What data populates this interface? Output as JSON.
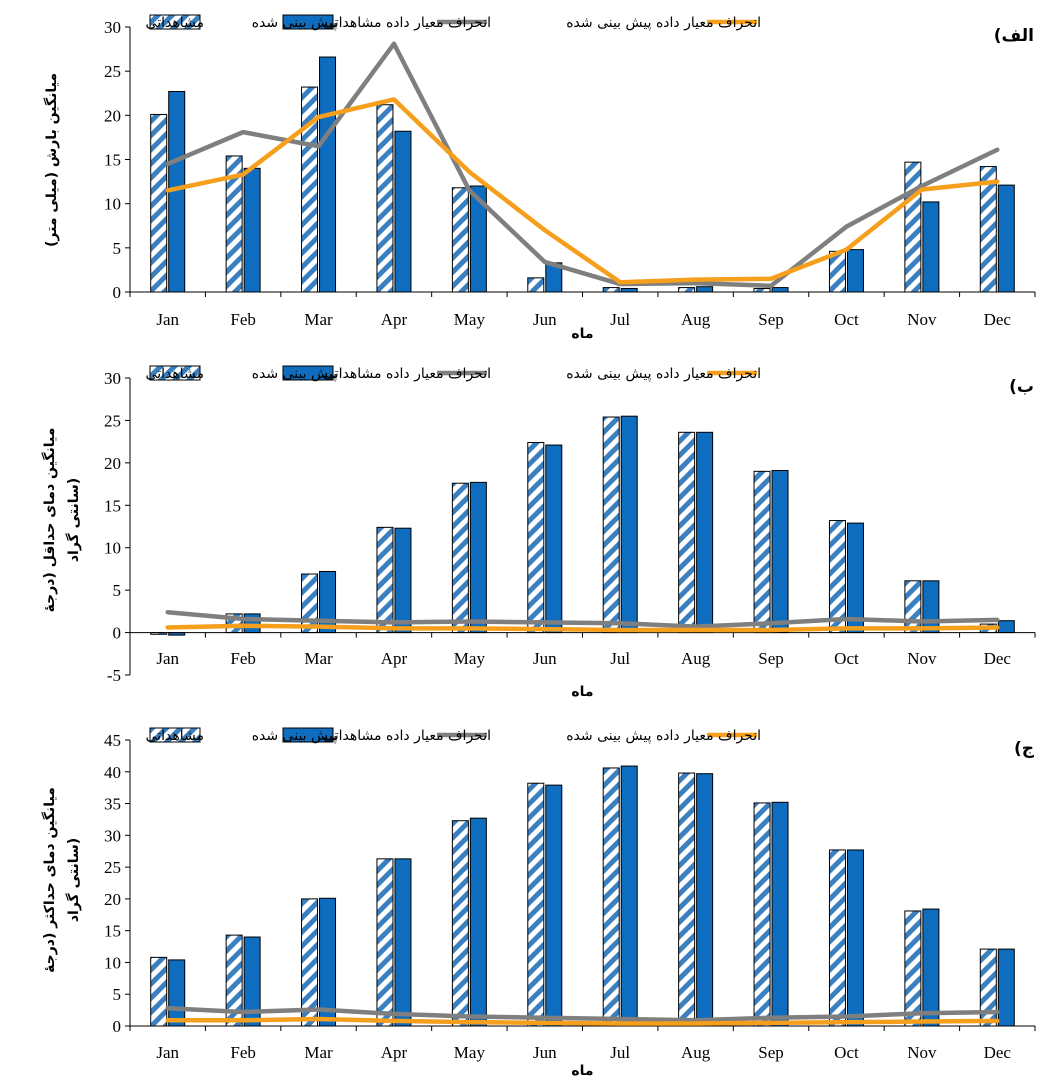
{
  "colors": {
    "observed_stripe": "#3a7fc0",
    "predicted_bar": "#0f6dbf",
    "observed_sd_line": "#7f7f7f",
    "predicted_sd_line": "#f59f1d",
    "axis": "#000000"
  },
  "legend": {
    "observed": "مشاهداتی",
    "predicted": "پیش بینی شده",
    "observed_sd": "انحراف معیار داده مشاهداتی",
    "predicted_sd": "انحراف معیار داده پیش بینی شده"
  },
  "chart_data": [
    {
      "type": "bar",
      "panel_label": "(الف",
      "ylabel": "میانگین بارش (میلی متر)",
      "xlabel": "ماه",
      "ylim": [
        0,
        30
      ],
      "yticks": [
        0,
        5,
        10,
        15,
        20,
        25,
        30
      ],
      "categories": [
        "Jan",
        "Feb",
        "Mar",
        "Apr",
        "May",
        "Jun",
        "Jul",
        "Aug",
        "Sep",
        "Oct",
        "Nov",
        "Dec"
      ],
      "legend_position": "top",
      "grid": false,
      "series": [
        {
          "name": "مشاهداتی",
          "kind": "bar-hatched",
          "values": [
            20.1,
            15.4,
            23.2,
            21.2,
            11.8,
            1.6,
            0.5,
            0.5,
            0.4,
            4.6,
            14.7,
            14.2
          ]
        },
        {
          "name": "پیش بینی شده",
          "kind": "bar",
          "values": [
            22.7,
            14.0,
            26.6,
            18.2,
            12.0,
            3.3,
            0.4,
            0.6,
            0.5,
            4.8,
            10.2,
            12.1
          ]
        },
        {
          "name": "انحراف معیار داده مشاهداتی",
          "kind": "line",
          "values": [
            14.5,
            18.1,
            16.5,
            28.1,
            11.5,
            3.4,
            0.9,
            1.0,
            0.7,
            7.4,
            12.0,
            16.1
          ]
        },
        {
          "name": "انحراف معیار داده پیش بینی شده",
          "kind": "line",
          "values": [
            11.5,
            13.3,
            19.8,
            21.8,
            13.6,
            7.0,
            1.1,
            1.4,
            1.5,
            4.8,
            11.6,
            12.5
          ]
        }
      ]
    },
    {
      "type": "bar",
      "panel_label": "(ب",
      "ylabel": [
        "میانگین دمای حداقل (درجهٔ",
        "سانتی گراد)"
      ],
      "xlabel": "ماه",
      "ylim": [
        -5,
        30
      ],
      "yticks": [
        -5,
        0,
        5,
        10,
        15,
        20,
        25,
        30
      ],
      "categories": [
        "Jan",
        "Feb",
        "Mar",
        "Apr",
        "May",
        "Jun",
        "Jul",
        "Aug",
        "Sep",
        "Oct",
        "Nov",
        "Dec"
      ],
      "legend_position": "top",
      "grid": false,
      "series": [
        {
          "name": "مشاهداتی",
          "kind": "bar-hatched",
          "values": [
            -0.2,
            2.2,
            6.9,
            12.4,
            17.6,
            22.4,
            25.4,
            23.6,
            19.0,
            13.2,
            6.1,
            1.0
          ]
        },
        {
          "name": "پیش بینی شده",
          "kind": "bar",
          "values": [
            -0.3,
            2.2,
            7.2,
            12.3,
            17.7,
            22.1,
            25.5,
            23.6,
            19.1,
            12.9,
            6.1,
            1.4
          ]
        },
        {
          "name": "انحراف معیار داده مشاهداتی",
          "kind": "line",
          "values": [
            2.4,
            1.6,
            1.4,
            1.2,
            1.3,
            1.2,
            1.1,
            0.7,
            1.1,
            1.6,
            1.3,
            1.5
          ]
        },
        {
          "name": "انحراف معیار داده پیش بینی شده",
          "kind": "line",
          "values": [
            0.6,
            0.8,
            0.7,
            0.5,
            0.5,
            0.4,
            0.3,
            0.3,
            0.3,
            0.5,
            0.5,
            0.6
          ]
        }
      ]
    },
    {
      "type": "bar",
      "panel_label": "(ج",
      "ylabel": [
        "میانگین دمای حداکثر (درجهٔ",
        "سانتی گراد)"
      ],
      "xlabel": "ماه",
      "ylim": [
        0,
        45
      ],
      "yticks": [
        0,
        5,
        10,
        15,
        20,
        25,
        30,
        35,
        40,
        45
      ],
      "categories": [
        "Jan",
        "Feb",
        "Mar",
        "Apr",
        "May",
        "Jun",
        "Jul",
        "Aug",
        "Sep",
        "Oct",
        "Nov",
        "Dec"
      ],
      "legend_position": "top",
      "grid": false,
      "series": [
        {
          "name": "مشاهداتی",
          "kind": "bar-hatched",
          "values": [
            10.8,
            14.3,
            20.0,
            26.3,
            32.3,
            38.2,
            40.6,
            39.8,
            35.1,
            27.7,
            18.1,
            12.1
          ]
        },
        {
          "name": "پیش بینی شده",
          "kind": "bar",
          "values": [
            10.4,
            14.0,
            20.1,
            26.3,
            32.7,
            37.9,
            40.9,
            39.7,
            35.2,
            27.7,
            18.4,
            12.1
          ]
        },
        {
          "name": "انحراف معیار داده مشاهداتی",
          "kind": "line",
          "values": [
            2.8,
            2.2,
            2.6,
            1.9,
            1.5,
            1.3,
            1.1,
            0.9,
            1.3,
            1.5,
            2.0,
            2.2
          ]
        },
        {
          "name": "انحراف معیار داده پیش بینی شده",
          "kind": "line",
          "values": [
            0.9,
            0.9,
            1.1,
            0.8,
            0.6,
            0.5,
            0.4,
            0.4,
            0.5,
            0.6,
            0.7,
            0.8
          ]
        }
      ]
    }
  ]
}
